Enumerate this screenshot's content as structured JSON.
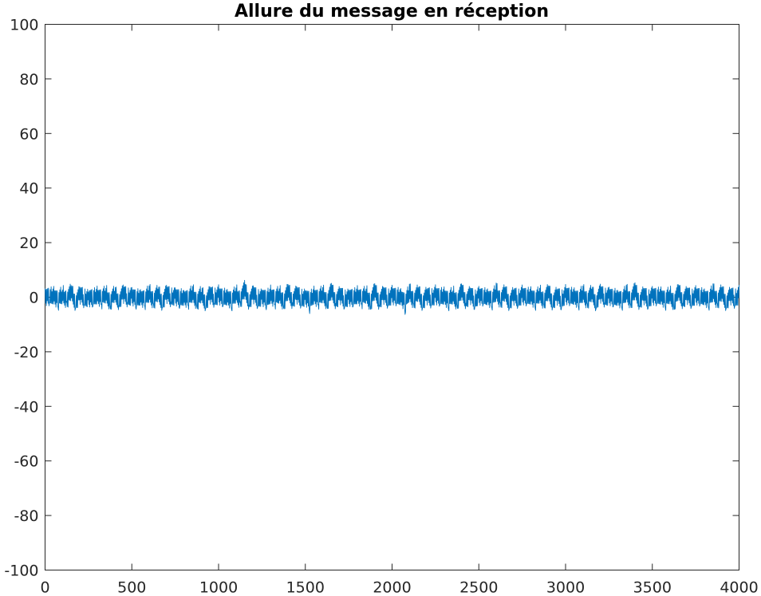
{
  "chart_data": {
    "type": "line",
    "title": "Allure du message en réception",
    "xlabel": "",
    "ylabel": "",
    "xlim": [
      0,
      4000
    ],
    "ylim": [
      -100,
      100
    ],
    "xticks": [
      0,
      500,
      1000,
      1500,
      2000,
      2500,
      3000,
      3500,
      4000
    ],
    "xtick_labels": [
      "0",
      "500",
      "1000",
      "1500",
      "2000",
      "2500",
      "3000",
      "3500",
      "4000"
    ],
    "yticks": [
      100,
      80,
      60,
      40,
      20,
      0,
      -20,
      -40,
      -60,
      -80,
      -100
    ],
    "ytick_labels": [
      "100",
      "80",
      "60",
      "40",
      "20",
      "0",
      "-20",
      "-40",
      "-60",
      "-80",
      "-100"
    ],
    "grid": false,
    "box": true,
    "line_color": "#0072BD",
    "series": [
      {
        "x_start": 0,
        "x_step": 25,
        "values": [
          3.2,
          -2.1,
          4.0,
          -3.8,
          2.6,
          -1.5,
          4.3,
          -4.2,
          3.7,
          -2.8,
          1.9,
          -3.5,
          4.1,
          -2.4,
          3.3,
          -4.0,
          2.2,
          -3.1,
          4.5,
          -1.9,
          3.6,
          -4.4,
          2.8,
          -3.3,
          4.2,
          -2.6,
          3.0,
          -3.9,
          4.4,
          -1.7,
          3.5,
          -4.1,
          2.5,
          -2.9,
          4.0,
          -3.6,
          1.8,
          -4.3,
          3.8,
          -2.2,
          4.6,
          -3.4,
          2.9,
          -4.5,
          3.4,
          -1.6,
          6.2,
          -3.0,
          4.2,
          -3.7,
          2.7,
          -4.6,
          4.5,
          -2.5,
          3.1,
          -4.0,
          4.7,
          -2.0,
          3.9,
          -3.2,
          2.4,
          -6.0,
          4.1,
          -2.7,
          3.6,
          -3.8,
          5.1,
          -2.3,
          3.3,
          -4.2,
          2.6,
          -3.5,
          4.3,
          -2.1,
          3.0,
          -4.4,
          5.0,
          -2.9,
          3.7,
          -3.3,
          4.4,
          -2.4,
          3.2,
          -6.3,
          4.8,
          -2.6,
          3.5,
          -4.1,
          2.9,
          -3.0,
          4.6,
          -2.8,
          3.8,
          -4.3,
          2.3,
          -3.6,
          4.9,
          -2.2,
          3.4,
          -4.5,
          4.0,
          -2.7,
          3.1,
          -3.9,
          5.2,
          -2.0,
          3.6,
          -4.2,
          2.7,
          -3.4,
          4.5,
          -2.5,
          3.9,
          -4.0,
          3.3,
          -2.9,
          4.2,
          -3.7,
          2.8,
          -4.6,
          4.7,
          -2.3,
          3.5,
          -3.8,
          4.1,
          -2.6,
          3.0,
          -4.4,
          4.8,
          -2.1,
          3.7,
          -3.5,
          2.5,
          -4.1,
          4.4,
          -2.8,
          5.3,
          -3.2,
          3.2,
          -4.3,
          4.0,
          -2.4,
          3.8,
          -3.9,
          2.6,
          -4.5,
          4.6,
          -2.2,
          3.4,
          -3.6,
          4.3,
          -2.7,
          3.1,
          -4.0,
          4.9,
          -2.5,
          3.6,
          -4.2,
          2.9,
          -3.3,
          4.5,
          -2.0,
          3.9,
          -4.7,
          2.4,
          -3.1,
          4.1,
          -2.9,
          3.5,
          -4.4,
          4.8,
          -2.3,
          3.0,
          -3.8,
          4.2,
          -2.6,
          3.7,
          -4.1,
          2.8,
          -3.4
        ],
        "note_values_are_amplitude": true
      }
    ]
  }
}
